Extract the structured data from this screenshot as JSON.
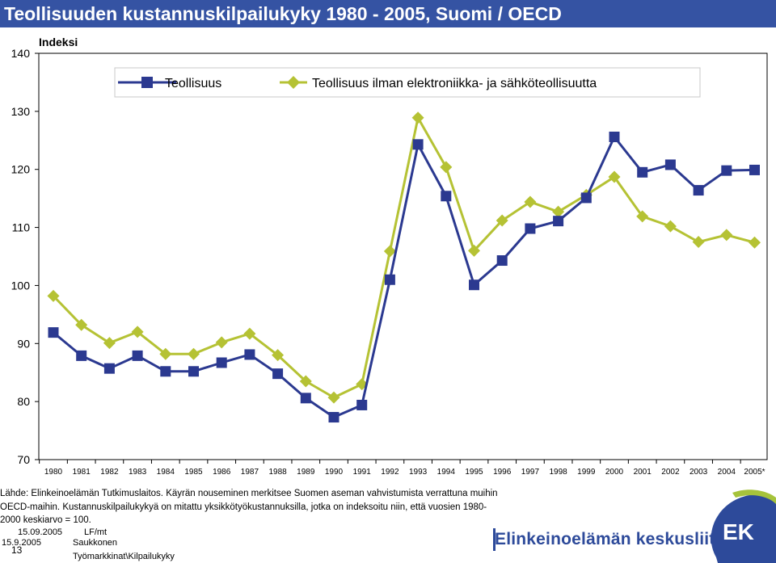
{
  "title": "Teollisuuden kustannuskilpailukyky 1980 - 2005, Suomi / OECD",
  "colors": {
    "title_bg": "#3553a3",
    "series1": "#2b3990",
    "series2": "#b5c234",
    "brand": "#2d4a9a",
    "logo_bg": "#2d4a9a",
    "logo_green": "#a6c33b"
  },
  "chart_data": {
    "type": "line",
    "ylabel": "Indeksi",
    "ylim": [
      70,
      140
    ],
    "yticks": [
      70,
      80,
      90,
      100,
      110,
      120,
      130,
      140
    ],
    "x": [
      "1980",
      "1981",
      "1982",
      "1983",
      "1984",
      "1985",
      "1986",
      "1987",
      "1988",
      "1989",
      "1990",
      "1991",
      "1992",
      "1993",
      "1994",
      "1995",
      "1996",
      "1997",
      "1998",
      "1999",
      "2000",
      "2001",
      "2002",
      "2003",
      "2004",
      "2005*"
    ],
    "legend_position": "top",
    "grid": false,
    "series": [
      {
        "name": "Teollisuus",
        "color": "#2b3990",
        "marker": "square",
        "values": [
          91.9,
          87.9,
          85.7,
          87.9,
          85.2,
          85.2,
          86.7,
          88.1,
          84.8,
          80.6,
          77.3,
          79.4,
          101.0,
          124.3,
          115.4,
          100.1,
          104.3,
          109.8,
          111.1,
          115.1,
          125.6,
          119.5,
          120.8,
          116.4,
          119.8,
          119.9
        ]
      },
      {
        "name": "Teollisuus ilman elektroniikka- ja sähköteollisuutta",
        "color": "#b5c234",
        "marker": "diamond",
        "values": [
          98.2,
          93.2,
          90.1,
          92.0,
          88.2,
          88.2,
          90.2,
          91.7,
          88.0,
          83.5,
          80.7,
          83.0,
          105.9,
          128.9,
          120.4,
          106.0,
          111.2,
          114.4,
          112.7,
          115.6,
          118.7,
          111.9,
          110.2,
          107.5,
          108.7,
          107.4
        ]
      }
    ]
  },
  "source_text": "Lähde: Elinkeinoelämän Tutkimuslaitos. Käyrän nouseminen merkitsee Suomen aseman vahvistumista verrattuna muihin OECD-maihin. Kustannuskilpailukykyä on mitattu yksikkötyökustannuksilla, jotka on indeksoitu niin, että vuosien 1980-2000 keskiarvo = 100.",
  "footer": {
    "date1": "15.09.2005",
    "author_code": "LF/mt",
    "date2": "15.9.2005",
    "author_name": "Saukkonen",
    "page": "13",
    "path": "Työmarkkinat\\Kilpailukyky"
  },
  "brand": {
    "name": "Elinkeinoelämän keskusliitto",
    "logo_text": "EK"
  }
}
